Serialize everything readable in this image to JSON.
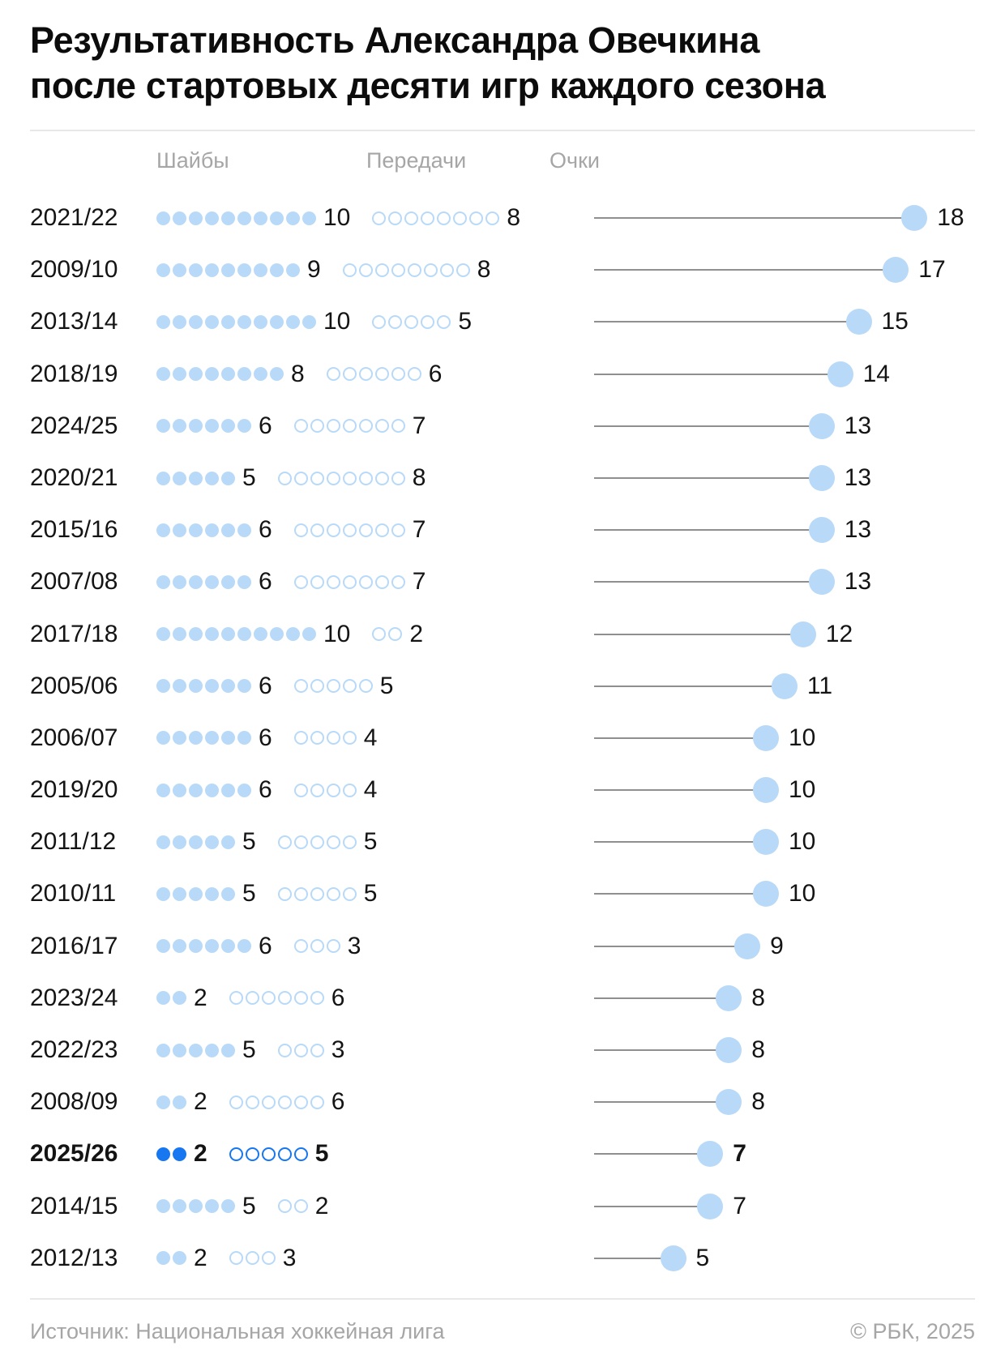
{
  "title": {
    "line1": "Результативность Александра Овечкина",
    "line2": "после стартовых десяти игр каждого сезона"
  },
  "columns": {
    "goals": "Шайбы",
    "assists": "Передачи",
    "points": "Очки"
  },
  "rows": [
    {
      "season": "2021/22",
      "goals": 10,
      "assists": 8,
      "points": 18,
      "highlight": false
    },
    {
      "season": "2009/10",
      "goals": 9,
      "assists": 8,
      "points": 17,
      "highlight": false
    },
    {
      "season": "2013/14",
      "goals": 10,
      "assists": 5,
      "points": 15,
      "highlight": false
    },
    {
      "season": "2018/19",
      "goals": 8,
      "assists": 6,
      "points": 14,
      "highlight": false
    },
    {
      "season": "2024/25",
      "goals": 6,
      "assists": 7,
      "points": 13,
      "highlight": false
    },
    {
      "season": "2020/21",
      "goals": 5,
      "assists": 8,
      "points": 13,
      "highlight": false
    },
    {
      "season": "2015/16",
      "goals": 6,
      "assists": 7,
      "points": 13,
      "highlight": false
    },
    {
      "season": "2007/08",
      "goals": 6,
      "assists": 7,
      "points": 13,
      "highlight": false
    },
    {
      "season": "2017/18",
      "goals": 10,
      "assists": 2,
      "points": 12,
      "highlight": false
    },
    {
      "season": "2005/06",
      "goals": 6,
      "assists": 5,
      "points": 11,
      "highlight": false
    },
    {
      "season": "2006/07",
      "goals": 6,
      "assists": 4,
      "points": 10,
      "highlight": false
    },
    {
      "season": "2019/20",
      "goals": 6,
      "assists": 4,
      "points": 10,
      "highlight": false
    },
    {
      "season": "2011/12",
      "goals": 5,
      "assists": 5,
      "points": 10,
      "highlight": false
    },
    {
      "season": "2010/11",
      "goals": 5,
      "assists": 5,
      "points": 10,
      "highlight": false
    },
    {
      "season": "2016/17",
      "goals": 6,
      "assists": 3,
      "points": 9,
      "highlight": false
    },
    {
      "season": "2023/24",
      "goals": 2,
      "assists": 6,
      "points": 8,
      "highlight": false
    },
    {
      "season": "2022/23",
      "goals": 5,
      "assists": 3,
      "points": 8,
      "highlight": false
    },
    {
      "season": "2008/09",
      "goals": 2,
      "assists": 6,
      "points": 8,
      "highlight": false
    },
    {
      "season": "2025/26",
      "goals": 2,
      "assists": 5,
      "points": 7,
      "highlight": true
    },
    {
      "season": "2014/15",
      "goals": 5,
      "assists": 2,
      "points": 7,
      "highlight": false
    },
    {
      "season": "2012/13",
      "goals": 2,
      "assists": 3,
      "points": 5,
      "highlight": false
    }
  ],
  "footer": {
    "source": "Источник: Национальная хоккейная лига",
    "copyright": "© РБК, 2025"
  },
  "colors": {
    "accent_light_blue": "#B8D9F8",
    "accent_highlight_blue": "#1677F0",
    "lollipop_line_gray": "#8F8F8F",
    "text_black": "#141414",
    "muted_gray": "#A6A6A6",
    "divider_gray": "#E8E8E8"
  },
  "chart_data": {
    "type": "bar",
    "variant": "lollipop-with-dot-pictograms",
    "title": "Результативность Александра Овечкина после стартовых десяти игр каждого сезона",
    "categories": [
      "2021/22",
      "2009/10",
      "2013/14",
      "2018/19",
      "2024/25",
      "2020/21",
      "2015/16",
      "2007/08",
      "2017/18",
      "2005/06",
      "2006/07",
      "2019/20",
      "2011/12",
      "2010/11",
      "2016/17",
      "2023/24",
      "2022/23",
      "2008/09",
      "2025/26",
      "2014/15",
      "2012/13"
    ],
    "series": [
      {
        "name": "Шайбы",
        "values": [
          10,
          9,
          10,
          8,
          6,
          5,
          6,
          6,
          10,
          6,
          6,
          6,
          5,
          5,
          6,
          2,
          5,
          2,
          2,
          5,
          2
        ]
      },
      {
        "name": "Передачи",
        "values": [
          8,
          8,
          5,
          6,
          7,
          8,
          7,
          7,
          2,
          5,
          4,
          4,
          5,
          5,
          3,
          6,
          3,
          6,
          5,
          2,
          3
        ]
      },
      {
        "name": "Очки",
        "values": [
          18,
          17,
          15,
          14,
          13,
          13,
          13,
          13,
          12,
          11,
          10,
          10,
          10,
          10,
          9,
          8,
          8,
          8,
          7,
          7,
          5
        ]
      }
    ],
    "highlighted_category": "2025/26",
    "points_axis_range": [
      0,
      18
    ],
    "sorted_by": "points descending",
    "grid": false,
    "legend_position": "column-headers-top"
  }
}
